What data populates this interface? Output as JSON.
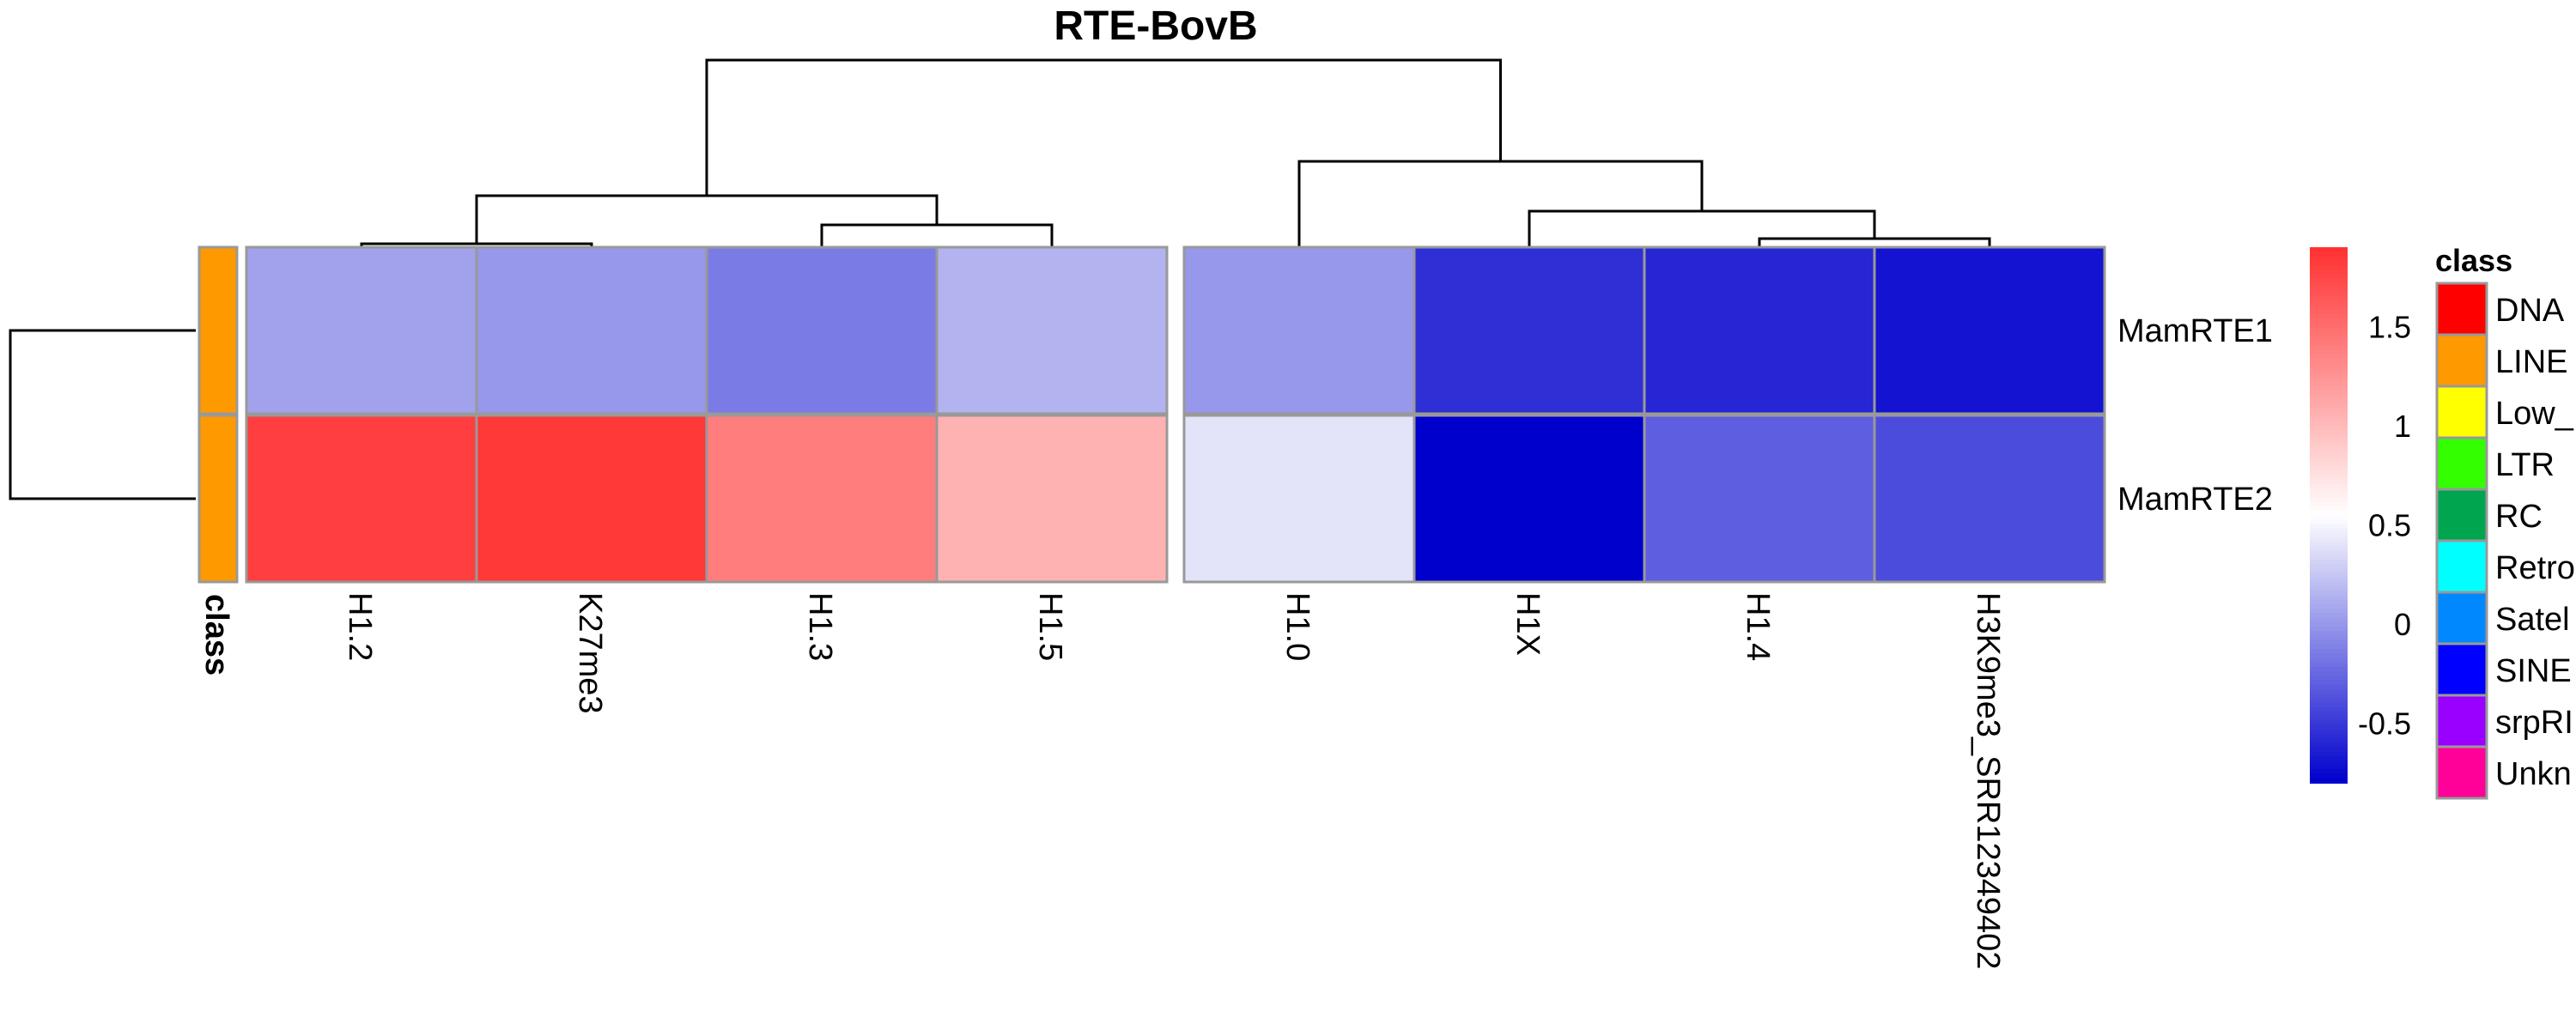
{
  "chart_data": {
    "type": "heatmap",
    "title": "RTE-BovB",
    "rows": [
      "MamRTE1",
      "MamRTE2"
    ],
    "columns": [
      "H1.2",
      "K27me3",
      "H1.3",
      "H1.5",
      "H1.0",
      "H1X",
      "H1.4",
      "H3K9me3_SRR12349402"
    ],
    "column_groups": [
      [
        "H1.2",
        "K27me3",
        "H1.3",
        "H1.5"
      ],
      [
        "H1.0",
        "H1X",
        "H1.4",
        "H3K9me3_SRR12349402"
      ]
    ],
    "values": [
      [
        0.05,
        0.0,
        -0.15,
        0.15,
        0.0,
        -0.55,
        -0.6,
        -0.7
      ],
      [
        1.8,
        1.85,
        1.4,
        1.05,
        0.4,
        -0.8,
        -0.3,
        -0.4
      ]
    ],
    "row_annotation": {
      "label": "class",
      "values": [
        "LINE",
        "LINE"
      ]
    },
    "color_scale": {
      "min": -0.8,
      "max": 1.9,
      "mid": 0.55,
      "low_color": "#0000cd",
      "mid_color": "#ffffff",
      "high_color": "#ff3030",
      "ticks": [
        -0.5,
        0,
        0.5,
        1,
        1.5
      ],
      "tick_labels": [
        "-0.5",
        "0",
        "0.5",
        "1",
        "1.5"
      ]
    },
    "class_legend": {
      "title": "class",
      "entries": [
        {
          "label": "DNA",
          "color": "#ff0000"
        },
        {
          "label": "LINE",
          "color": "#ff9900"
        },
        {
          "label": "Low_",
          "color": "#ffff00"
        },
        {
          "label": "LTR",
          "color": "#33ff00"
        },
        {
          "label": "RC",
          "color": "#00a550"
        },
        {
          "label": "Retro",
          "color": "#00ffff"
        },
        {
          "label": "Satel",
          "color": "#0088ff"
        },
        {
          "label": "SINE",
          "color": "#0000ff"
        },
        {
          "label": "srpRI",
          "color": "#9900ff"
        },
        {
          "label": "Unkn",
          "color": "#ff0099"
        }
      ]
    },
    "grid_color": "#999999",
    "dendrogram_color": "#000000"
  }
}
